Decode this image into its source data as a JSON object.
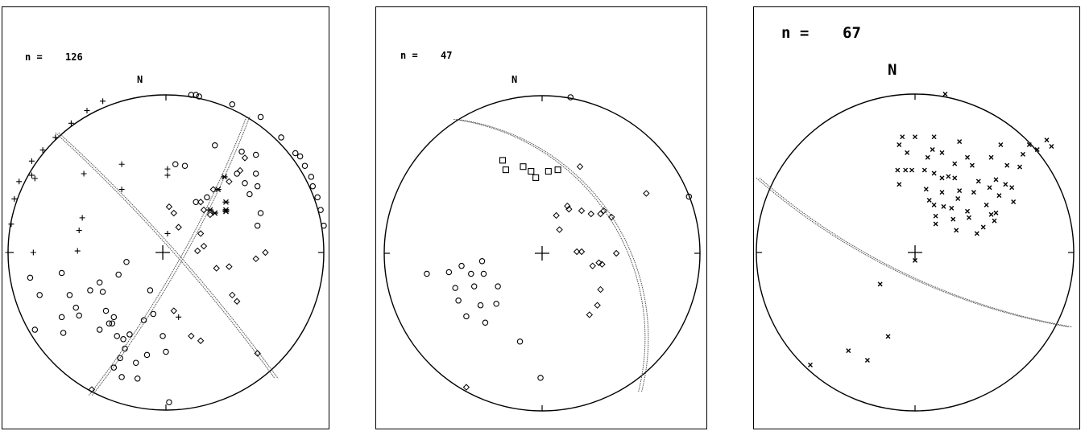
{
  "panels": [
    {
      "n_label": "n =",
      "n_value": "126",
      "north_label": "N",
      "center": [
        -0.02,
        0.0
      ],
      "great_circles": [
        {
          "type": "arc",
          "from": [
            -0.69,
            0.76
          ],
          "mid": [
            0.04,
            0.02
          ],
          "to": [
            0.7,
            -0.8
          ],
          "doubled": true
        },
        {
          "type": "arc",
          "from": [
            0.52,
            0.86
          ],
          "mid": [
            0.12,
            0.0
          ],
          "to": [
            -0.48,
            -0.91
          ],
          "doubled": true
        }
      ],
      "point_sets": [
        {
          "symbol": "circle",
          "points": [
            [
              0.16,
              1.0
            ],
            [
              0.19,
              1.0
            ],
            [
              0.21,
              0.99
            ],
            [
              0.42,
              0.94
            ],
            [
              0.6,
              0.86
            ],
            [
              0.73,
              0.73
            ],
            [
              0.82,
              0.63
            ],
            [
              0.85,
              0.61
            ],
            [
              0.88,
              0.55
            ],
            [
              0.92,
              0.48
            ],
            [
              0.93,
              0.42
            ],
            [
              0.96,
              0.35
            ],
            [
              0.98,
              0.27
            ],
            [
              1.0,
              0.17
            ],
            [
              0.31,
              0.68
            ],
            [
              0.57,
              0.62
            ],
            [
              0.48,
              0.64
            ],
            [
              0.45,
              0.5
            ],
            [
              0.5,
              0.44
            ],
            [
              0.57,
              0.5
            ],
            [
              0.58,
              0.42
            ],
            [
              0.12,
              0.55
            ],
            [
              0.06,
              0.56
            ],
            [
              0.53,
              0.37
            ],
            [
              0.26,
              0.35
            ],
            [
              0.19,
              0.32
            ],
            [
              0.58,
              0.17
            ],
            [
              0.6,
              0.25
            ],
            [
              -0.25,
              -0.06
            ],
            [
              -0.66,
              -0.13
            ],
            [
              -0.86,
              -0.16
            ],
            [
              -0.61,
              -0.27
            ],
            [
              -0.42,
              -0.19
            ],
            [
              -0.3,
              -0.14
            ],
            [
              -0.48,
              -0.24
            ],
            [
              -0.57,
              -0.35
            ],
            [
              -0.8,
              -0.27
            ],
            [
              -0.55,
              -0.4
            ],
            [
              -0.66,
              -0.41
            ],
            [
              -0.83,
              -0.49
            ],
            [
              -0.65,
              -0.51
            ],
            [
              -0.4,
              -0.25
            ],
            [
              -0.38,
              -0.37
            ],
            [
              -0.33,
              -0.41
            ],
            [
              -0.34,
              -0.45
            ],
            [
              -0.1,
              -0.24
            ],
            [
              -0.42,
              -0.49
            ],
            [
              -0.36,
              -0.45
            ],
            [
              -0.31,
              -0.53
            ],
            [
              -0.27,
              -0.55
            ],
            [
              -0.23,
              -0.52
            ],
            [
              -0.14,
              -0.43
            ],
            [
              -0.08,
              -0.39
            ],
            [
              -0.02,
              -0.53
            ],
            [
              0.0,
              -0.63
            ],
            [
              -0.26,
              -0.61
            ],
            [
              -0.29,
              -0.67
            ],
            [
              -0.33,
              -0.73
            ],
            [
              -0.19,
              -0.7
            ],
            [
              -0.12,
              -0.65
            ],
            [
              -0.28,
              -0.79
            ],
            [
              0.02,
              -0.95
            ],
            [
              -0.18,
              -0.8
            ]
          ]
        },
        {
          "symbol": "diamond",
          "points": [
            [
              0.5,
              0.6
            ],
            [
              0.47,
              0.52
            ],
            [
              0.4,
              0.45
            ],
            [
              0.3,
              0.4
            ],
            [
              0.22,
              0.32
            ],
            [
              0.22,
              0.12
            ],
            [
              0.08,
              0.16
            ],
            [
              0.02,
              0.29
            ],
            [
              0.28,
              0.24
            ],
            [
              0.24,
              0.04
            ],
            [
              0.2,
              0.01
            ],
            [
              0.4,
              -0.09
            ],
            [
              0.57,
              -0.04
            ],
            [
              0.32,
              -0.1
            ],
            [
              0.63,
              0.0
            ],
            [
              0.42,
              -0.27
            ],
            [
              0.45,
              -0.31
            ],
            [
              0.05,
              -0.37
            ],
            [
              0.16,
              -0.53
            ],
            [
              0.22,
              -0.56
            ],
            [
              0.58,
              -0.64
            ],
            [
              -0.47,
              -0.87
            ],
            [
              0.05,
              0.25
            ],
            [
              0.24,
              0.27
            ]
          ]
        },
        {
          "symbol": "plus",
          "points": [
            [
              -0.4,
              0.96
            ],
            [
              -0.5,
              0.9
            ],
            [
              -0.6,
              0.82
            ],
            [
              -0.7,
              0.73
            ],
            [
              -0.78,
              0.65
            ],
            [
              -0.85,
              0.58
            ],
            [
              -0.93,
              0.45
            ],
            [
              -0.96,
              0.34
            ],
            [
              -0.98,
              0.18
            ],
            [
              -1.0,
              0.0
            ],
            [
              -0.85,
              0.49
            ],
            [
              -0.83,
              0.47
            ],
            [
              -0.28,
              0.56
            ],
            [
              -0.28,
              0.4
            ],
            [
              -0.52,
              0.5
            ],
            [
              -0.53,
              0.22
            ],
            [
              -0.55,
              0.14
            ],
            [
              -0.56,
              0.01
            ],
            [
              -0.84,
              0.0
            ],
            [
              0.01,
              0.53
            ],
            [
              0.01,
              0.49
            ],
            [
              0.01,
              0.12
            ],
            [
              0.08,
              -0.41
            ]
          ]
        },
        {
          "symbol": "star",
          "points": [
            [
              0.33,
              0.4
            ],
            [
              0.37,
              0.48
            ],
            [
              0.38,
              0.32
            ],
            [
              0.28,
              0.27
            ],
            [
              0.31,
              0.25
            ],
            [
              0.38,
              0.27
            ],
            [
              0.38,
              0.26
            ]
          ]
        }
      ]
    },
    {
      "n_label": "n =",
      "n_value": "47",
      "north_label": "N",
      "center": [
        0.0,
        0.0
      ],
      "great_circles": [
        {
          "type": "arc",
          "from": [
            -0.55,
            0.85
          ],
          "mid": [
            0.18,
            0.52
          ],
          "to": [
            0.62,
            -0.88
          ],
          "doubled": true
        }
      ],
      "point_sets": [
        {
          "symbol": "circle",
          "points": [
            [
              0.18,
              0.99
            ],
            [
              0.93,
              0.36
            ],
            [
              -0.73,
              -0.13
            ],
            [
              -0.55,
              -0.22
            ],
            [
              -0.59,
              -0.12
            ],
            [
              -0.51,
              -0.08
            ],
            [
              -0.45,
              -0.13
            ],
            [
              -0.38,
              -0.05
            ],
            [
              -0.37,
              -0.13
            ],
            [
              -0.43,
              -0.21
            ],
            [
              -0.39,
              -0.33
            ],
            [
              -0.28,
              -0.21
            ],
            [
              -0.53,
              -0.3
            ],
            [
              -0.48,
              -0.4
            ],
            [
              -0.29,
              -0.32
            ],
            [
              -0.36,
              -0.44
            ],
            [
              -0.14,
              -0.56
            ],
            [
              -0.01,
              -0.79
            ]
          ]
        },
        {
          "symbol": "square",
          "points": [
            [
              -0.25,
              0.59
            ],
            [
              -0.12,
              0.55
            ],
            [
              -0.23,
              0.53
            ],
            [
              0.04,
              0.52
            ],
            [
              -0.07,
              0.52
            ],
            [
              -0.04,
              0.48
            ],
            [
              0.1,
              0.53
            ]
          ]
        },
        {
          "symbol": "diamond",
          "points": [
            [
              0.24,
              0.55
            ],
            [
              0.66,
              0.38
            ],
            [
              0.17,
              0.28
            ],
            [
              0.16,
              0.3
            ],
            [
              0.25,
              0.27
            ],
            [
              0.31,
              0.25
            ],
            [
              0.37,
              0.25
            ],
            [
              0.39,
              0.27
            ],
            [
              0.44,
              0.23
            ],
            [
              0.09,
              0.24
            ],
            [
              0.25,
              0.01
            ],
            [
              0.32,
              -0.08
            ],
            [
              0.38,
              -0.07
            ],
            [
              0.47,
              0.0
            ],
            [
              0.37,
              -0.23
            ],
            [
              0.35,
              -0.33
            ],
            [
              0.3,
              -0.39
            ],
            [
              0.11,
              0.15
            ],
            [
              0.22,
              0.01
            ],
            [
              0.36,
              -0.06
            ],
            [
              -0.48,
              -0.85
            ]
          ]
        }
      ]
    },
    {
      "n_label": "n =",
      "n_value": "67",
      "north_label": "N",
      "center": [
        0.0,
        0.0
      ],
      "great_circles": [
        {
          "type": "arc",
          "from": [
            -0.99,
            0.47
          ],
          "mid": [
            -0.1,
            -0.12
          ],
          "to": [
            0.98,
            -0.47
          ],
          "doubled": true
        }
      ],
      "point_sets": [
        {
          "symbol": "cross",
          "points": [
            [
              0.19,
              1.0
            ],
            [
              0.83,
              0.71
            ],
            [
              0.86,
              0.67
            ],
            [
              -0.08,
              0.73
            ],
            [
              0.0,
              0.73
            ],
            [
              0.12,
              0.73
            ],
            [
              0.28,
              0.7
            ],
            [
              0.54,
              0.68
            ],
            [
              0.72,
              0.68
            ],
            [
              0.77,
              0.65
            ],
            [
              -0.1,
              0.68
            ],
            [
              0.11,
              0.65
            ],
            [
              0.17,
              0.63
            ],
            [
              0.33,
              0.6
            ],
            [
              0.48,
              0.6
            ],
            [
              0.68,
              0.62
            ],
            [
              -0.05,
              0.63
            ],
            [
              0.08,
              0.6
            ],
            [
              0.25,
              0.56
            ],
            [
              0.36,
              0.55
            ],
            [
              0.58,
              0.55
            ],
            [
              0.66,
              0.54
            ],
            [
              -0.11,
              0.52
            ],
            [
              -0.06,
              0.52
            ],
            [
              -0.02,
              0.52
            ],
            [
              0.06,
              0.52
            ],
            [
              0.12,
              0.5
            ],
            [
              0.17,
              0.47
            ],
            [
              0.21,
              0.48
            ],
            [
              0.25,
              0.47
            ],
            [
              0.4,
              0.45
            ],
            [
              0.51,
              0.46
            ],
            [
              0.57,
              0.43
            ],
            [
              0.61,
              0.41
            ],
            [
              -0.1,
              0.43
            ],
            [
              0.07,
              0.4
            ],
            [
              0.17,
              0.38
            ],
            [
              0.28,
              0.39
            ],
            [
              0.37,
              0.38
            ],
            [
              0.47,
              0.41
            ],
            [
              0.53,
              0.36
            ],
            [
              0.62,
              0.32
            ],
            [
              0.09,
              0.33
            ],
            [
              0.12,
              0.3
            ],
            [
              0.18,
              0.29
            ],
            [
              0.23,
              0.28
            ],
            [
              0.33,
              0.26
            ],
            [
              0.45,
              0.3
            ],
            [
              0.51,
              0.25
            ],
            [
              0.13,
              0.23
            ],
            [
              0.24,
              0.21
            ],
            [
              0.34,
              0.22
            ],
            [
              0.43,
              0.16
            ],
            [
              0.5,
              0.2
            ],
            [
              0.39,
              0.12
            ],
            [
              0.26,
              0.14
            ],
            [
              0.13,
              0.18
            ],
            [
              0.27,
              0.34
            ],
            [
              0.48,
              0.24
            ],
            [
              0.0,
              -0.05
            ],
            [
              -0.22,
              -0.2
            ],
            [
              -0.17,
              -0.53
            ],
            [
              -0.42,
              -0.62
            ],
            [
              -0.3,
              -0.68
            ],
            [
              -0.66,
              -0.71
            ]
          ]
        }
      ]
    }
  ]
}
